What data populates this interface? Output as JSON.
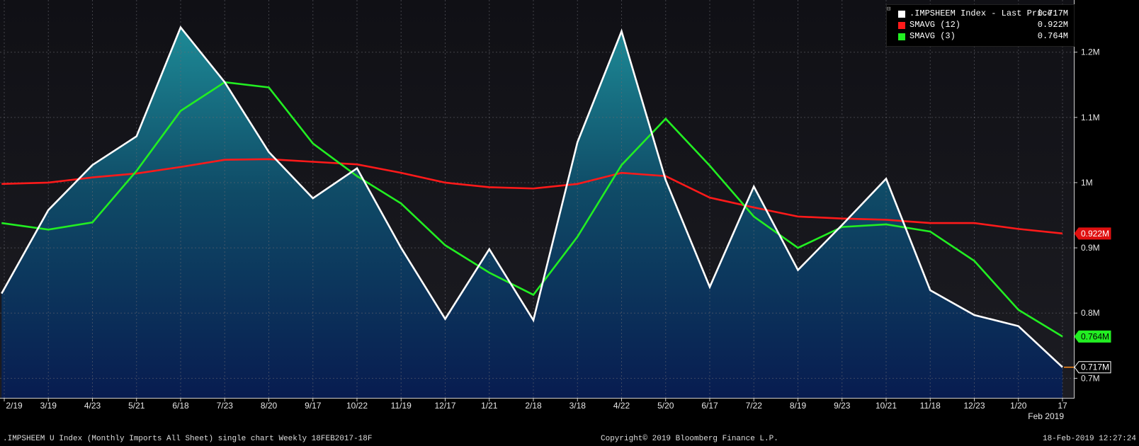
{
  "chart_data": {
    "type": "area",
    "x": [
      "2/19",
      "3/19",
      "4/23",
      "5/21",
      "6/18",
      "7/23",
      "8/20",
      "9/17",
      "10/22",
      "11/19",
      "12/17",
      "1/21",
      "2/18",
      "3/18",
      "4/22",
      "5/20",
      "6/17",
      "7/22",
      "8/19",
      "9/23",
      "10/21",
      "11/18",
      "12/23",
      "1/20",
      "17"
    ],
    "x_subtitle": "Feb 2019",
    "ylim": [
      0.67,
      1.28
    ],
    "y_ticks": [
      0.7,
      0.8,
      0.9,
      1.0,
      1.1,
      1.2
    ],
    "y_tick_labels": [
      "0.7M",
      "0.8M",
      "0.9M",
      "1M",
      "1.1M",
      "1.2M"
    ],
    "grid": true,
    "legend_position": "top-right",
    "series": [
      {
        "name": ".IMPSHEEM Index - Last Price",
        "color": "#ffffff",
        "last_label": "0.717M",
        "x_start": -0.06,
        "values": [
          0.83,
          0.958,
          1.027,
          1.071,
          1.238,
          1.154,
          1.047,
          0.976,
          1.022,
          0.9,
          0.791,
          0.898,
          0.789,
          1.062,
          1.232,
          1.004,
          0.84,
          0.994,
          0.866,
          0.935,
          1.006,
          0.835,
          0.797,
          0.78,
          0.717
        ]
      },
      {
        "name": "SMAVG (12)",
        "color": "#ff1a1a",
        "last_label": "0.922M",
        "x_start": -0.06,
        "values": [
          0.998,
          1.0,
          1.008,
          1.014,
          1.024,
          1.035,
          1.036,
          1.032,
          1.028,
          1.015,
          1.0,
          0.993,
          0.991,
          0.998,
          1.015,
          1.01,
          0.977,
          0.962,
          0.948,
          0.945,
          0.943,
          0.938,
          0.938,
          0.929,
          0.922
        ]
      },
      {
        "name": "SMAVG (3)",
        "color": "#22ee22",
        "last_label": "0.764M",
        "x_start": -0.06,
        "values": [
          0.938,
          0.928,
          0.939,
          1.018,
          1.11,
          1.154,
          1.146,
          1.06,
          1.01,
          0.968,
          0.904,
          0.862,
          0.828,
          0.917,
          1.027,
          1.098,
          1.026,
          0.948,
          0.9,
          0.932,
          0.936,
          0.925,
          0.88,
          0.805,
          0.764
        ]
      }
    ]
  },
  "legend": {
    "items": [
      {
        "name": ".IMPSHEEM Index - Last Price",
        "value": "0.717M",
        "color": "#ffffff"
      },
      {
        "name": "SMAVG (12)",
        "value": "0.922M",
        "color": "#ff1a1a"
      },
      {
        "name": "SMAVG (3)",
        "value": "0.764M",
        "color": "#22ee22"
      }
    ]
  },
  "footer": {
    "left": ".IMPSHEEM U Index (Monthly Imports All Sheet) single chart  Weekly 18FEB2017-18F",
    "center": "Copyright© 2019 Bloomberg Finance L.P.",
    "right": "18-Feb-2019 12:27:24"
  }
}
